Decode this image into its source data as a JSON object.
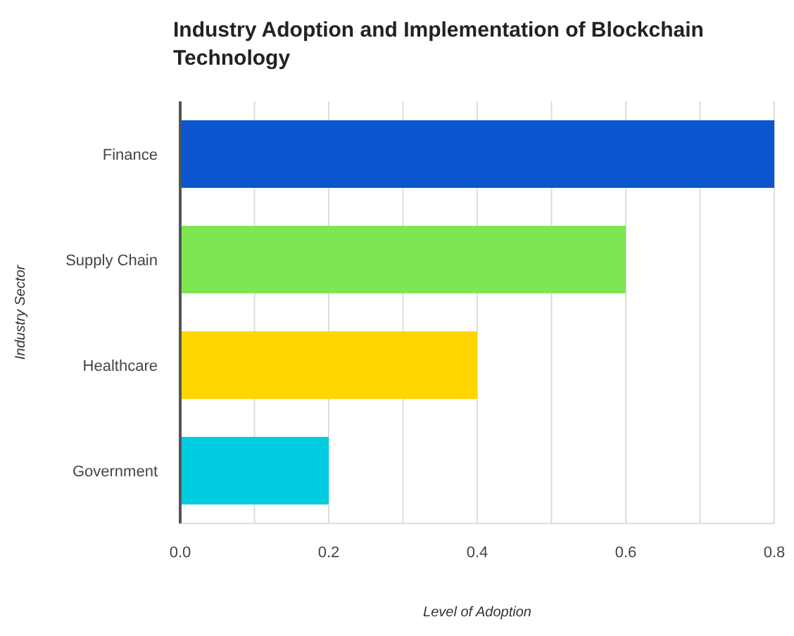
{
  "chart_data": {
    "type": "bar",
    "orientation": "horizontal",
    "title": "Industry Adoption and Implementation of Blockchain Technology",
    "xlabel": "Level of Adoption",
    "ylabel": "Industry Sector",
    "categories": [
      "Finance",
      "Supply Chain",
      "Healthcare",
      "Government"
    ],
    "values": [
      0.8,
      0.6,
      0.4,
      0.2
    ],
    "colors": [
      "#0b55cf",
      "#7ee553",
      "#ffd600",
      "#00cde0"
    ],
    "xlim": [
      0,
      0.8
    ],
    "xticks": [
      {
        "value": 0,
        "label": "0.0"
      },
      {
        "value": 0.1,
        "label": null
      },
      0.2,
      {
        "value": 0.3,
        "label": null
      },
      0.4,
      {
        "value": 0.5,
        "label": null
      },
      0.6,
      {
        "value": 0.7,
        "label": null
      },
      0.8
    ],
    "grid": "x",
    "legend": false
  }
}
